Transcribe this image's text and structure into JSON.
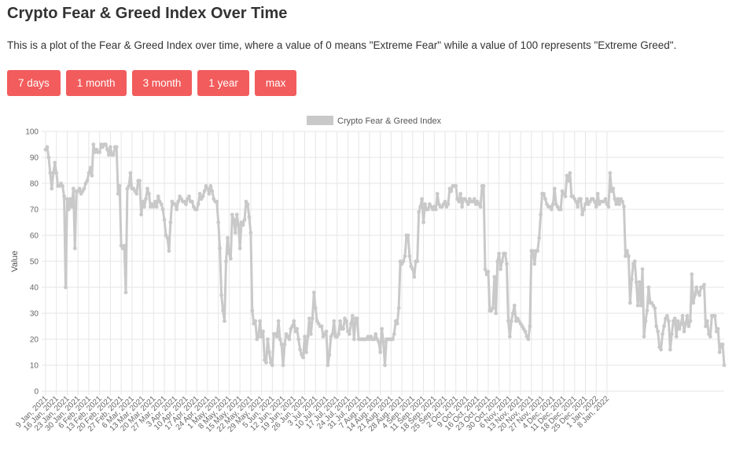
{
  "header": {
    "title": "Crypto Fear & Greed Index Over Time",
    "description": "This is a plot of the Fear & Greed Index over time, where a value of 0 means \"Extreme Fear\" while a value of 100 represents \"Extreme Greed\"."
  },
  "range_buttons": [
    "7 days",
    "1 month",
    "3 month",
    "1 year",
    "max"
  ],
  "colors": {
    "button": "#f25c5c",
    "series": "#c9c9c9",
    "grid": "#e6e6e6"
  },
  "chart_data": {
    "type": "line",
    "title": "",
    "xlabel": "",
    "ylabel": "Value",
    "ylim": [
      0,
      100
    ],
    "yticks": [
      0,
      10,
      20,
      30,
      40,
      50,
      60,
      70,
      80,
      90,
      100
    ],
    "grid": true,
    "legend_position": "top-center",
    "x_tick_labels": [
      "9 Jan, 2021",
      "16 Jan, 2021",
      "23 Jan, 2021",
      "30 Jan, 2021",
      "6 Feb, 2021",
      "13 Feb, 2021",
      "20 Feb, 2021",
      "27 Feb, 2021",
      "6 Mar, 2021",
      "13 Mar, 2021",
      "20 Mar, 2021",
      "27 Mar, 2021",
      "3 Apr, 2021",
      "10 Apr, 2021",
      "17 Apr, 2021",
      "24 Apr, 2021",
      "1 May, 2021",
      "8 May, 2021",
      "15 May, 2021",
      "22 May, 2021",
      "29 May, 2021",
      "5 Jun, 2021",
      "12 Jun, 2021",
      "19 Jun, 2021",
      "26 Jun, 2021",
      "3 Jul, 2021",
      "10 Jul, 2021",
      "17 Jul, 2021",
      "24 Jul, 2021",
      "31 Jul, 2021",
      "7 Aug, 2021",
      "14 Aug, 2021",
      "21 Aug, 2021",
      "28 Aug, 2021",
      "4 Sep, 2021",
      "11 Sep, 2021",
      "18 Sep, 2021",
      "25 Sep, 2021",
      "2 Oct, 2021",
      "9 Oct, 2021",
      "16 Oct, 2021",
      "23 Oct, 2021",
      "30 Oct, 2021",
      "6 Nov, 2021",
      "13 Nov, 2021",
      "20 Nov, 2021",
      "27 Nov, 2021",
      "4 Dec, 2021",
      "11 Dec, 2021",
      "18 Dec, 2021",
      "25 Dec, 2021",
      "1 Jan, 2022",
      "8 Jan, 2022"
    ],
    "series": [
      {
        "name": "Crypto Fear & Greed Index",
        "start_date": "9 Jan, 2021",
        "interval": "1 day",
        "values": [
          93,
          94,
          90,
          84,
          78,
          84,
          88,
          84,
          79,
          79,
          80,
          79,
          75,
          40,
          74,
          70,
          74,
          71,
          78,
          55,
          77,
          77,
          78,
          76,
          77,
          78,
          80,
          81,
          84,
          86,
          83,
          95,
          92,
          93,
          92,
          92,
          95,
          94,
          95,
          95,
          93,
          91,
          94,
          91,
          91,
          94,
          94,
          76,
          79,
          56,
          55,
          56,
          38,
          78,
          79,
          84,
          78,
          78,
          77,
          76,
          81,
          81,
          68,
          73,
          71,
          74,
          78,
          76,
          71,
          72,
          71,
          73,
          71,
          75,
          73,
          72,
          70,
          66,
          60,
          59,
          54,
          65,
          73,
          72,
          72,
          70,
          73,
          75,
          74,
          73,
          73,
          72,
          74,
          75,
          73,
          73,
          71,
          70,
          70,
          72,
          76,
          74,
          75,
          77,
          79,
          78,
          76,
          79,
          77,
          74,
          73,
          73,
          65,
          55,
          37,
          31,
          27,
          50,
          59,
          53,
          51,
          68,
          66,
          61,
          68,
          64,
          55,
          65,
          64,
          66,
          73,
          72,
          67,
          61,
          31,
          26,
          27,
          20,
          21,
          27,
          21,
          23,
          12,
          11,
          20,
          15,
          11,
          10,
          22,
          22,
          21,
          27,
          20,
          18,
          10,
          18,
          22,
          21,
          20,
          24,
          25,
          27,
          23,
          24,
          20,
          16,
          14,
          13,
          21,
          15,
          21,
          28,
          22,
          28,
          38,
          32,
          27,
          26,
          25,
          25,
          21,
          22,
          23,
          10,
          14,
          21,
          22,
          27,
          21,
          21,
          22,
          27,
          24,
          24,
          28,
          27,
          23,
          22,
          26,
          29,
          20,
          28,
          28,
          20,
          20,
          20,
          20,
          20,
          20,
          21,
          20,
          21,
          20,
          20,
          22,
          20,
          19,
          15,
          24,
          19,
          10,
          20,
          20,
          20,
          20,
          20,
          22,
          27,
          26,
          32,
          50,
          49,
          50,
          52,
          60,
          60,
          52,
          48,
          47,
          44,
          50,
          50,
          69,
          71,
          74,
          65,
          72,
          70,
          70,
          72,
          71,
          70,
          71,
          70,
          76,
          72,
          71,
          71,
          72,
          73,
          71,
          72,
          78,
          77,
          79,
          79,
          79,
          74,
          73,
          76,
          71,
          74,
          74,
          73,
          72,
          74,
          73,
          73,
          74,
          72,
          73,
          72,
          71,
          79,
          79,
          47,
          45,
          46,
          31,
          31,
          32,
          44,
          30,
          50,
          53,
          47,
          50,
          53,
          53,
          49,
          27,
          21,
          27,
          30,
          33,
          27,
          28,
          27,
          26,
          25,
          24,
          23,
          21,
          20,
          25,
          54,
          54,
          49,
          54,
          54,
          59,
          68,
          76,
          76,
          74,
          72,
          71,
          71,
          70,
          72,
          78,
          72,
          71,
          70,
          70,
          77,
          76,
          75,
          83,
          81,
          84,
          75,
          75,
          74,
          73,
          71,
          74,
          74,
          68,
          70,
          72,
          74,
          72,
          73,
          74,
          74,
          73,
          71,
          76,
          72,
          73,
          73,
          73,
          74,
          72,
          71,
          84,
          77,
          78,
          74,
          72,
          74,
          72,
          74,
          73,
          71,
          52,
          54,
          52,
          34,
          43,
          49,
          50,
          42,
          33,
          42,
          33,
          47,
          21,
          27,
          31,
          40,
          34,
          34,
          33,
          32,
          25,
          23,
          17,
          16,
          22,
          25,
          28,
          29,
          27,
          16,
          22,
          27,
          28,
          21,
          27,
          24,
          26,
          29,
          23,
          26,
          29,
          25,
          27,
          45,
          34,
          37,
          40,
          38,
          37,
          40,
          40,
          41,
          25,
          27,
          22,
          21,
          29,
          29,
          29,
          23,
          24,
          15,
          18,
          18,
          10
        ]
      }
    ]
  }
}
